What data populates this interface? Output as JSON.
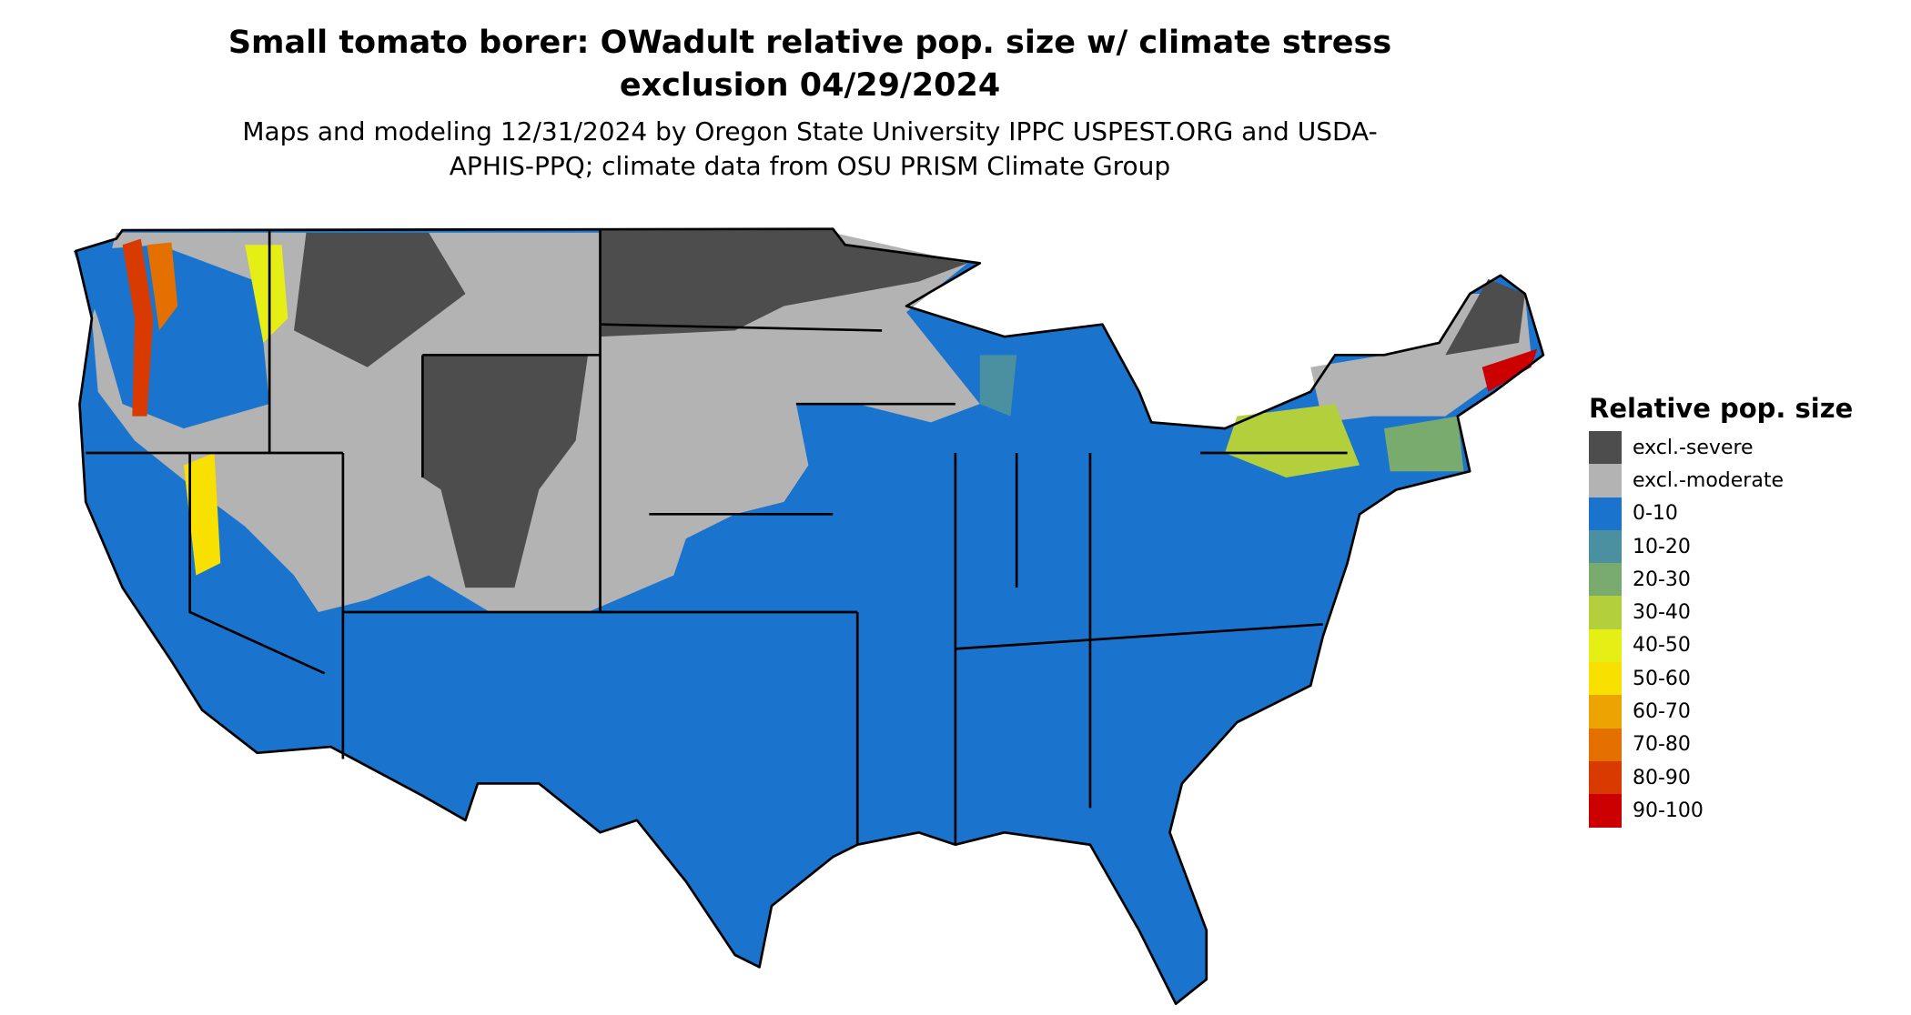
{
  "title": "Small tomato borer: OWadult relative pop. size w/ climate stress exclusion 04/29/2024",
  "subtitle": "Maps and modeling 12/31/2024 by Oregon State University IPPC USPEST.ORG and USDA-APHIS-PPQ; climate data from OSU PRISM Climate Group",
  "legend": {
    "title": "Relative pop. size",
    "items": [
      {
        "label": "excl.-severe",
        "color": "#4d4d4d"
      },
      {
        "label": "excl.-moderate",
        "color": "#b3b3b3"
      },
      {
        "label": "0-10",
        "color": "#1a74cd"
      },
      {
        "label": "10-20",
        "color": "#4a90a0"
      },
      {
        "label": "20-30",
        "color": "#7aab6e"
      },
      {
        "label": "30-40",
        "color": "#b4cf3c"
      },
      {
        "label": "40-50",
        "color": "#e5ef16"
      },
      {
        "label": "50-60",
        "color": "#f8e000"
      },
      {
        "label": "60-70",
        "color": "#eba400"
      },
      {
        "label": "70-80",
        "color": "#e47000"
      },
      {
        "label": "80-90",
        "color": "#d83a00"
      },
      {
        "label": "90-100",
        "color": "#cc0000"
      }
    ]
  }
}
